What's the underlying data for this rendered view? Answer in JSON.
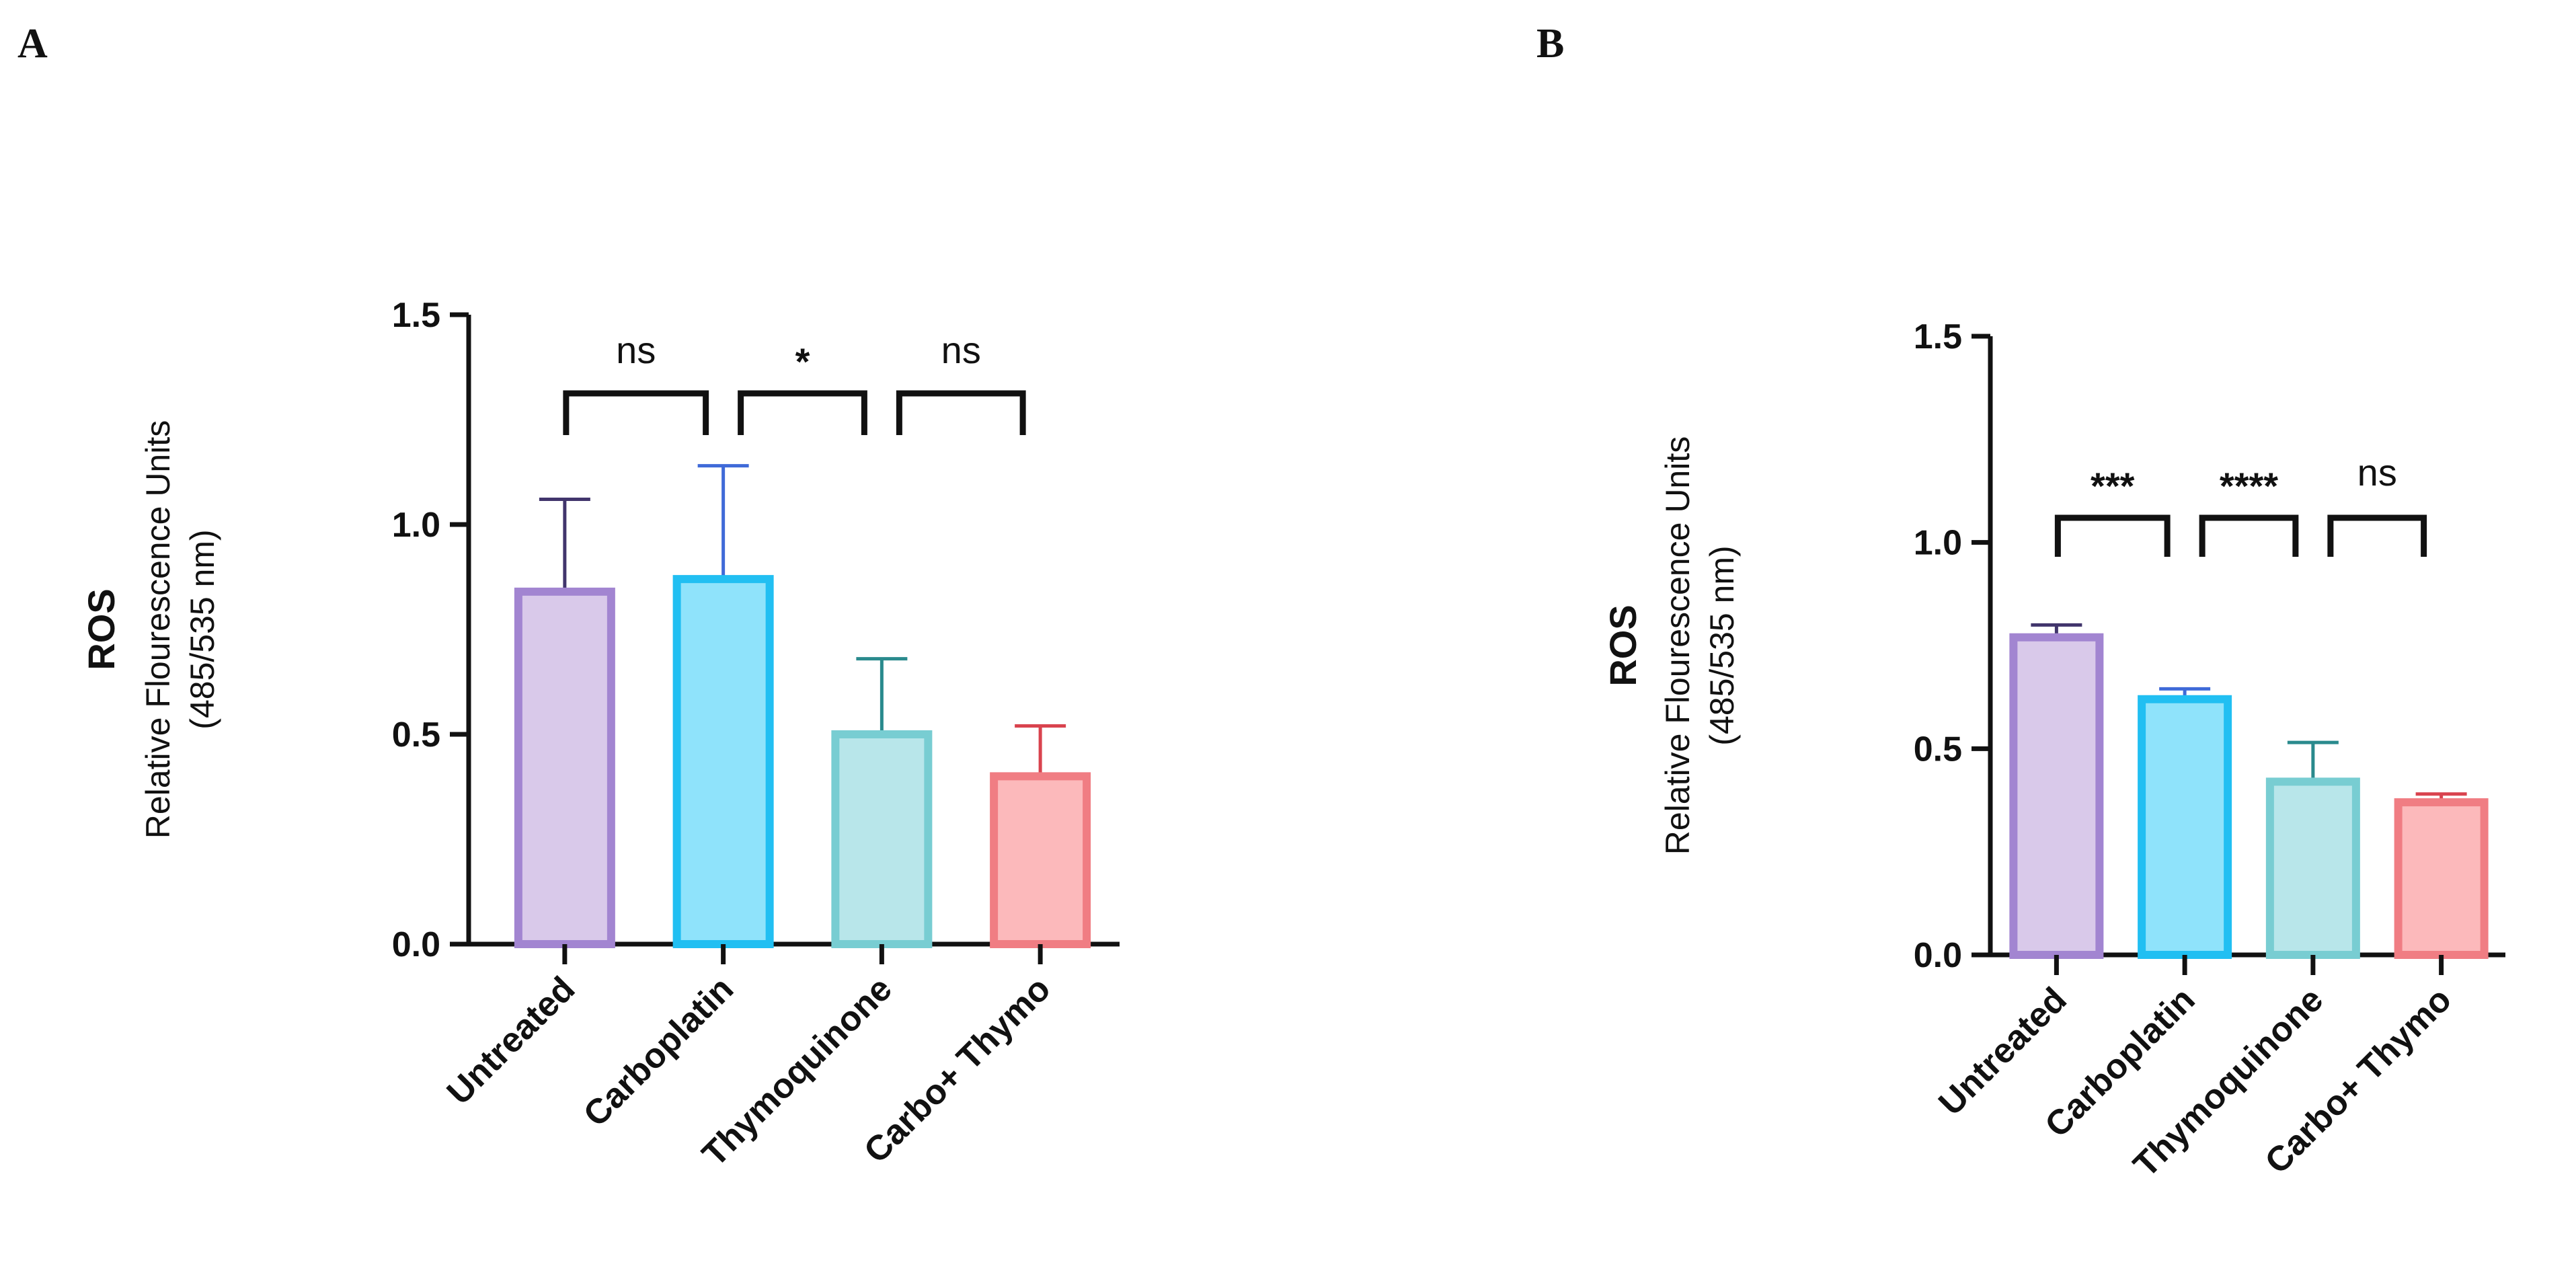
{
  "panels": [
    {
      "letter": "A"
    },
    {
      "letter": "B"
    }
  ],
  "chart_data": [
    {
      "type": "bar",
      "panel": "A",
      "categories": [
        "Untreated",
        "Carboplatin",
        "Thymoquinone",
        "Carbo+ Thymo"
      ],
      "values": [
        0.84,
        0.87,
        0.5,
        0.4
      ],
      "error": [
        0.22,
        0.27,
        0.18,
        0.12
      ],
      "ylabel_main": "ROS",
      "ylabel_sub1": "Relative Flourescence Units",
      "ylabel_sub2": "(485/535 nm)",
      "ylim": [
        0,
        1.5
      ],
      "yticks": [
        "0.0",
        "0.5",
        "1.0",
        "1.5"
      ],
      "significance": [
        {
          "from": 0,
          "to": 1,
          "label": "ns"
        },
        {
          "from": 1,
          "to": 2,
          "label": "*"
        },
        {
          "from": 2,
          "to": 3,
          "label": "ns"
        }
      ],
      "colors": {
        "fill": [
          "#d9c9ea",
          "#8fe3fb",
          "#b8e6ea",
          "#fcb9bb"
        ],
        "edge": [
          "#a285d1",
          "#21bff2",
          "#78cdd2",
          "#f07d83"
        ],
        "error": [
          "#41356c",
          "#3f6ad8",
          "#2a8a8d",
          "#d9434e"
        ]
      }
    },
    {
      "type": "bar",
      "panel": "B",
      "categories": [
        "Untreated",
        "Carboplatin",
        "Thymoquinone",
        "Carbo+ Thymo"
      ],
      "values": [
        0.77,
        0.62,
        0.42,
        0.37
      ],
      "error": [
        0.03,
        0.025,
        0.095,
        0.02
      ],
      "ylabel_main": "ROS",
      "ylabel_sub1": "Relative Flourescence Units",
      "ylabel_sub2": "(485/535 nm)",
      "ylim": [
        0,
        1.5
      ],
      "yticks": [
        "0.0",
        "0.5",
        "1.0",
        "1.5"
      ],
      "significance": [
        {
          "from": 0,
          "to": 1,
          "label": "***"
        },
        {
          "from": 1,
          "to": 2,
          "label": "****"
        },
        {
          "from": 2,
          "to": 3,
          "label": "ns"
        }
      ],
      "colors": {
        "fill": [
          "#d9c9ea",
          "#8fe3fb",
          "#b8e6ea",
          "#fcb9bb"
        ],
        "edge": [
          "#a285d1",
          "#21bff2",
          "#78cdd2",
          "#f07d83"
        ],
        "error": [
          "#41356c",
          "#3f6ad8",
          "#2a8a8d",
          "#d9434e"
        ]
      }
    }
  ]
}
